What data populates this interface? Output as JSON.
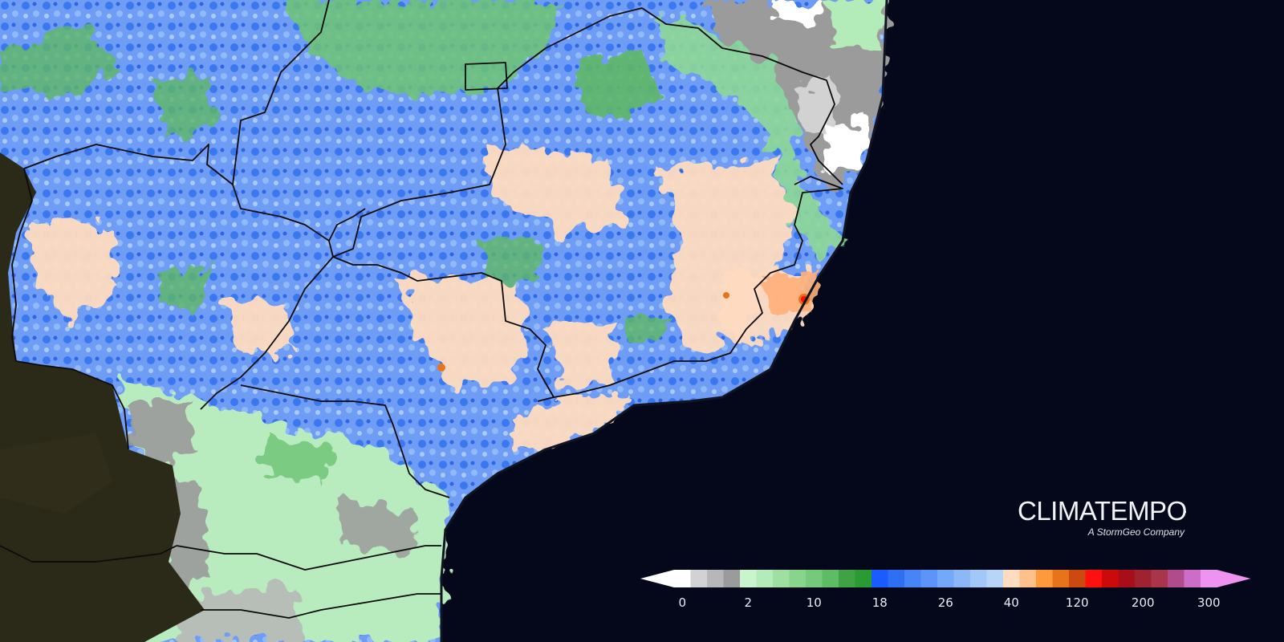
{
  "brand": {
    "name": "CLIMATEMPO",
    "tagline": "A StormGeo Company"
  },
  "map": {
    "type": "precipitation-anomaly-map",
    "region": "Southeast Brazil",
    "ocean_color": "#05081a",
    "outside_land_color": "#2b2a18",
    "borders_color": "#0b0b0b"
  },
  "legend": {
    "tick_labels": [
      "0",
      "2",
      "10",
      "18",
      "26",
      "40",
      "120",
      "200",
      "300"
    ],
    "tick_positions_swatch": [
      0,
      4,
      8,
      12,
      16,
      20,
      24,
      28,
      32
    ],
    "colors": [
      "#ffffff",
      "#d2d2d2",
      "#b7b7b7",
      "#9b9b9b",
      "#c8f5cd",
      "#b4ecb9",
      "#9fe0a2",
      "#88d48c",
      "#74c97a",
      "#5ebb66",
      "#3fa345",
      "#2a9a33",
      "#1a5cff",
      "#2f6ff3",
      "#4784f5",
      "#5c95f7",
      "#74a8f8",
      "#8cb8f8",
      "#a2c8f8",
      "#b7d6f7",
      "#ffdcc0",
      "#ffc08c",
      "#ff9a3c",
      "#e8741a",
      "#cc4a10",
      "#ff1010",
      "#cc0a0a",
      "#a80d1a",
      "#9e2230",
      "#a8354a",
      "#b04c8c",
      "#cc6ec8",
      "#ee94f0"
    ],
    "min_arrow_color": "#ffffff",
    "max_arrow_color": "#ee94f0"
  }
}
